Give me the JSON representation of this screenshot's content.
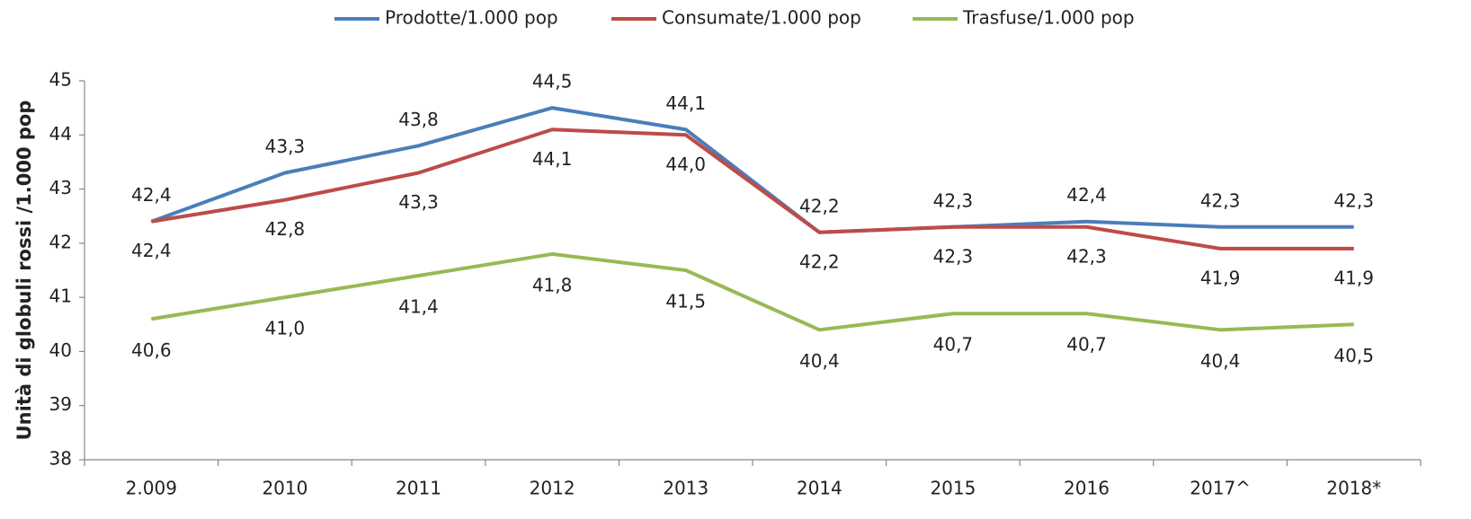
{
  "chart_data": {
    "type": "line",
    "y_label": "Unità di globuli rossi /1.000 pop",
    "categories": [
      "2.009",
      "2010",
      "2011",
      "2012",
      "2013",
      "2014",
      "2015",
      "2016",
      "2017^",
      "2018*"
    ],
    "series": [
      {
        "name": "Prodotte/1.000 pop",
        "color": "#4a7ebb",
        "values": [
          42.4,
          43.3,
          43.8,
          44.5,
          44.1,
          42.2,
          42.3,
          42.4,
          42.3,
          42.3
        ],
        "value_labels": [
          "42,4",
          "43,3",
          "43,8",
          "44,5",
          "44,1",
          "42,2",
          "42,3",
          "42,4",
          "42,3",
          "42,3"
        ]
      },
      {
        "name": "Consumate/1.000 pop",
        "color": "#be4b48",
        "values": [
          42.4,
          42.8,
          43.3,
          44.1,
          44.0,
          42.2,
          42.3,
          42.3,
          41.9,
          41.9
        ],
        "value_labels": [
          "42,4",
          "42,8",
          "43,3",
          "44,1",
          "44,0",
          "42,2",
          "42,3",
          "42,3",
          "41,9",
          "41,9"
        ]
      },
      {
        "name": "Trasfuse/1.000 pop",
        "color": "#98b954",
        "values": [
          40.6,
          41.0,
          41.4,
          41.8,
          41.5,
          40.4,
          40.7,
          40.7,
          40.4,
          40.5
        ],
        "value_labels": [
          "40,6",
          "41,0",
          "41,4",
          "41,8",
          "41,5",
          "40,4",
          "40,7",
          "40,7",
          "40,4",
          "40,5"
        ]
      }
    ],
    "ylim": [
      38,
      45
    ],
    "yticks": [
      38,
      39,
      40,
      41,
      42,
      43,
      44,
      45
    ],
    "grid": false,
    "legend": "top"
  }
}
